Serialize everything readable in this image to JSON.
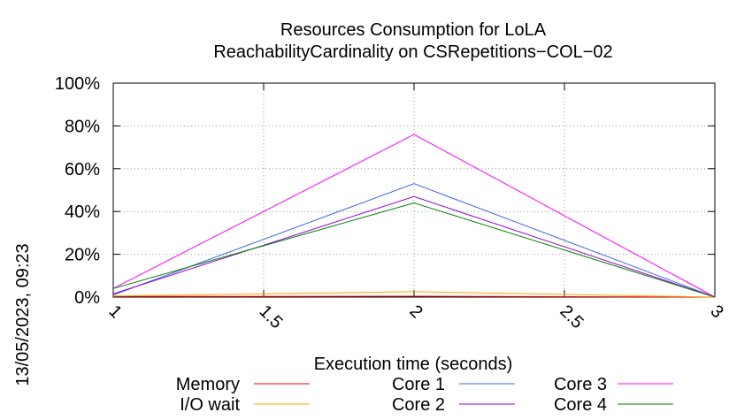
{
  "chart_data": {
    "type": "line",
    "title_lines": [
      "Resources Consumption for LoLA",
      "ReachabilityCardinality on CSRepetitions−COL−02"
    ],
    "xlabel": "Execution time (seconds)",
    "ylabel": "",
    "side_label": "13/05/2023, 09:23",
    "xlim": [
      1,
      3
    ],
    "ylim": [
      0,
      100
    ],
    "x_ticks": [
      1,
      1.5,
      2,
      2.5,
      3
    ],
    "x_tick_labels": [
      "1",
      "1.5",
      "2",
      "2.5",
      "3"
    ],
    "y_ticks": [
      0,
      20,
      40,
      60,
      80,
      100
    ],
    "y_tick_labels": [
      "0%",
      "20%",
      "40%",
      "60%",
      "80%",
      "100%"
    ],
    "grid": true,
    "legend_position": "bottom",
    "x": [
      1,
      2,
      3
    ],
    "series": [
      {
        "name": "Memory",
        "color": "#ff0000",
        "values": [
          0.3,
          0.4,
          0
        ]
      },
      {
        "name": "I/O wait",
        "color": "#ffa500",
        "values": [
          0.5,
          2.5,
          0
        ]
      },
      {
        "name": "Core 1",
        "color": "#4169e1",
        "values": [
          1,
          53,
          0
        ]
      },
      {
        "name": "Core 2",
        "color": "#9400d3",
        "values": [
          1.5,
          47,
          0
        ]
      },
      {
        "name": "Core 3",
        "color": "#ff00ff",
        "values": [
          4,
          76,
          0
        ]
      },
      {
        "name": "Core 4",
        "color": "#008000",
        "values": [
          4,
          44,
          0
        ]
      }
    ]
  }
}
